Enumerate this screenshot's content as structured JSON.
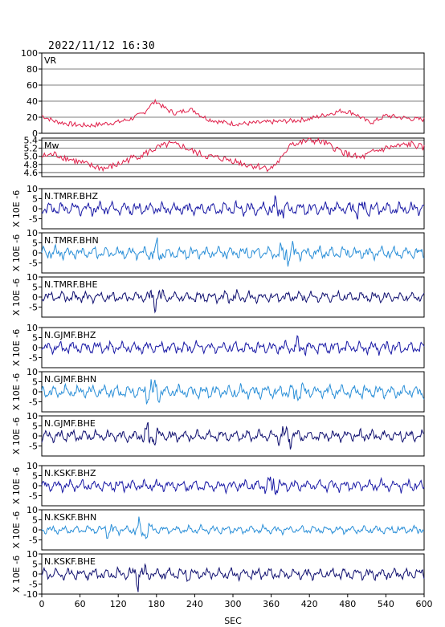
{
  "header": {
    "timestamp": "2022/11/12 16:30"
  },
  "chart_data": {
    "type": "line",
    "xlabel": "SEC",
    "xlim": [
      0,
      600
    ],
    "xticks": [
      0,
      60,
      120,
      180,
      240,
      300,
      360,
      420,
      480,
      540,
      600
    ],
    "colors": {
      "vr": "#e0204a",
      "mw": "#e0204a",
      "bhz": "#1a1aa6",
      "bhn": "#2a8fd8",
      "bhe": "#101070"
    },
    "panels": [
      {
        "id": "vr",
        "label": "VR",
        "ylim": [
          0,
          100
        ],
        "yticks": [
          0,
          20,
          40,
          60,
          80,
          100
        ],
        "grid": true,
        "color": "#e0204a",
        "x": [
          0,
          20,
          40,
          60,
          80,
          100,
          120,
          140,
          160,
          170,
          180,
          190,
          200,
          210,
          220,
          230,
          240,
          250,
          260,
          270,
          280,
          300,
          320,
          340,
          360,
          380,
          400,
          420,
          440,
          460,
          470,
          480,
          490,
          500,
          510,
          520,
          540,
          560,
          580,
          600
        ],
        "y": [
          22,
          15,
          12,
          10,
          10,
          12,
          14,
          18,
          25,
          35,
          40,
          33,
          28,
          25,
          27,
          30,
          28,
          22,
          18,
          16,
          14,
          12,
          12,
          13,
          14,
          15,
          16,
          18,
          22,
          26,
          28,
          27,
          25,
          20,
          15,
          14,
          22,
          20,
          18,
          17
        ]
      },
      {
        "id": "mw",
        "label": "Mw",
        "ylim": [
          4.5,
          5.45
        ],
        "yticks": [
          4.6,
          4.8,
          5.0,
          5.2,
          5.4
        ],
        "grid": true,
        "color": "#e0204a",
        "x": [
          0,
          20,
          40,
          60,
          80,
          100,
          120,
          140,
          160,
          180,
          200,
          220,
          240,
          260,
          280,
          300,
          320,
          340,
          360,
          380,
          390,
          400,
          420,
          440,
          460,
          480,
          500,
          520,
          540,
          560,
          580,
          600
        ],
        "y": [
          5.0,
          5.05,
          4.95,
          4.85,
          4.75,
          4.7,
          4.8,
          4.95,
          5.05,
          5.2,
          5.3,
          5.25,
          5.1,
          5.0,
          4.95,
          4.9,
          4.8,
          4.75,
          4.7,
          5.0,
          5.35,
          5.3,
          5.4,
          5.35,
          5.2,
          5.05,
          4.95,
          5.1,
          5.2,
          5.25,
          5.3,
          5.2
        ]
      },
      {
        "id": "tmrf-bhz",
        "label": "N.TMRF.BHZ",
        "ylabel": "X 10E -6",
        "ylim": [
          -10,
          10
        ],
        "yticks": [
          -5,
          0,
          5,
          10
        ],
        "color": "#1a1aa6",
        "seed": 11,
        "amp": 3.2,
        "bursts": [
          [
            370,
            2.0
          ],
          [
            500,
            1.6
          ]
        ]
      },
      {
        "id": "tmrf-bhn",
        "label": "N.TMRF.BHN",
        "ylabel": "X 10E -6",
        "ylim": [
          -10,
          10
        ],
        "yticks": [
          -5,
          0,
          5,
          10
        ],
        "color": "#2a8fd8",
        "seed": 23,
        "amp": 3.0,
        "bursts": [
          [
            180,
            2.4
          ],
          [
            385,
            2.6
          ]
        ]
      },
      {
        "id": "tmrf-bhe",
        "label": "N.TMRF.BHE",
        "ylabel": "X 10E -6",
        "ylim": [
          -10,
          10
        ],
        "yticks": [
          -5,
          0,
          5,
          10
        ],
        "color": "#101070",
        "seed": 37,
        "amp": 2.6,
        "bursts": [
          [
            178,
            3.2
          ],
          [
            300,
            1.6
          ]
        ]
      },
      {
        "id": "gjmf-bhz",
        "label": "N.GJMF.BHZ",
        "ylabel": "X 10E -6",
        "ylim": [
          -10,
          10
        ],
        "yticks": [
          -5,
          0,
          5,
          10
        ],
        "color": "#1a1aa6",
        "seed": 41,
        "amp": 3.0,
        "bursts": [
          [
            400,
            1.6
          ]
        ]
      },
      {
        "id": "gjmf-bhn",
        "label": "N.GJMF.BHN",
        "ylabel": "X 10E -6",
        "ylim": [
          -10,
          10
        ],
        "yticks": [
          -5,
          0,
          5,
          10
        ],
        "color": "#2a8fd8",
        "seed": 53,
        "amp": 3.2,
        "bursts": [
          [
            175,
            3.0
          ],
          [
            400,
            1.8
          ]
        ]
      },
      {
        "id": "gjmf-bhe",
        "label": "N.GJMF.BHE",
        "ylabel": "X 10E -6",
        "ylim": [
          -10,
          10
        ],
        "yticks": [
          -5,
          0,
          5,
          10
        ],
        "color": "#101070",
        "seed": 67,
        "amp": 2.8,
        "bursts": [
          [
            170,
            3.0
          ],
          [
            385,
            3.0
          ]
        ]
      },
      {
        "id": "kskf-bhz",
        "label": "N.KSKF.BHZ",
        "ylabel": "X 10E -6",
        "ylim": [
          -10,
          10
        ],
        "yticks": [
          -5,
          0,
          5,
          10
        ],
        "color": "#1a1aa6",
        "seed": 71,
        "amp": 2.8,
        "bursts": [
          [
            360,
            2.4
          ]
        ]
      },
      {
        "id": "kskf-bhn",
        "label": "N.KSKF.BHN",
        "ylabel": "X 10E -6",
        "ylim": [
          -10,
          10
        ],
        "yticks": [
          -5,
          0,
          5,
          10
        ],
        "color": "#2a8fd8",
        "seed": 83,
        "amp": 2.0,
        "bursts": [
          [
            160,
            4.0
          ],
          [
            105,
            2.0
          ]
        ]
      },
      {
        "id": "kskf-bhe",
        "label": "N.KSKF.BHE",
        "ylabel": "X 10E -6",
        "ylim": [
          -10,
          10
        ],
        "yticks": [
          -10,
          -5,
          0,
          5,
          10
        ],
        "color": "#101070",
        "seed": 97,
        "amp": 2.8,
        "bursts": [
          [
            155,
            3.2
          ],
          [
            230,
            1.4
          ]
        ]
      }
    ]
  }
}
